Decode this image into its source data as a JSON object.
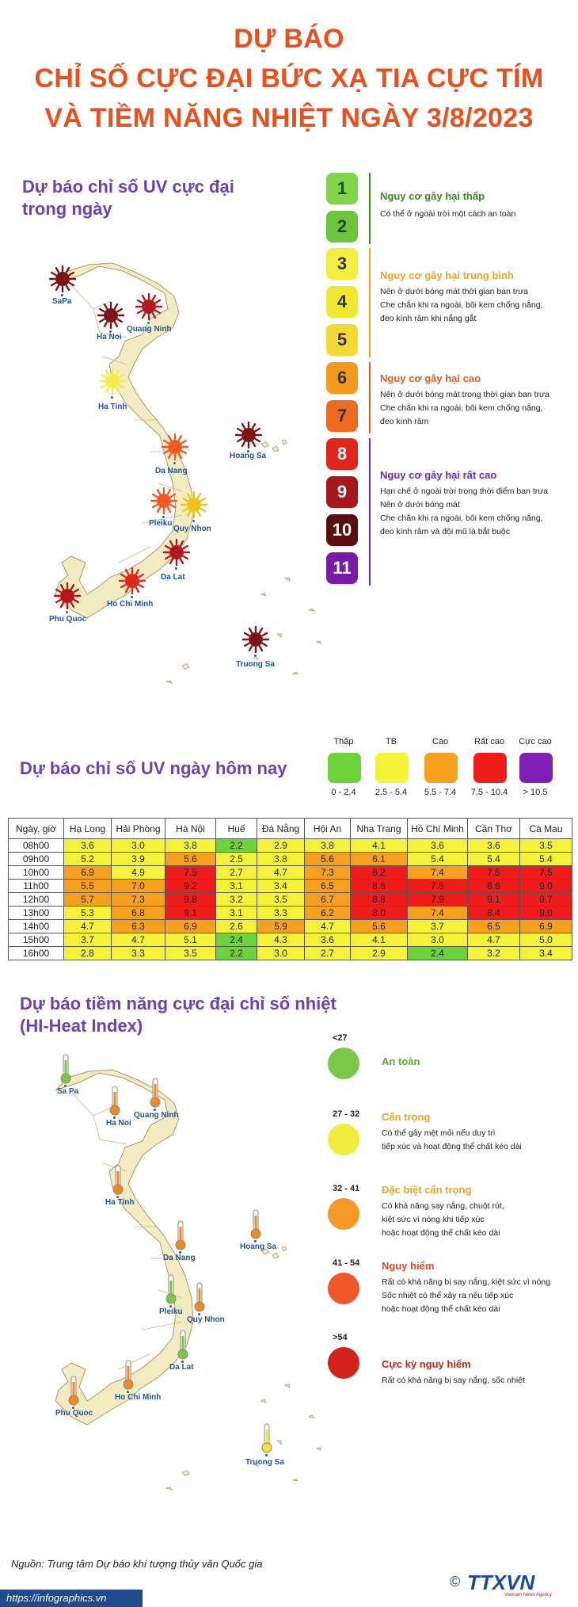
{
  "title": {
    "line1": "DỰ BÁO",
    "line2": "CHỈ SỐ CỰC ĐẠI BỨC XẠ TIA CỰC TÍM",
    "line3": "VÀ TIỀM NĂNG NHIỆT NGÀY 3/8/2023"
  },
  "uv_max": {
    "heading_line1": "Dự báo chỉ số UV cực đại",
    "heading_line2": "trong ngày",
    "cities": [
      {
        "name": "SaPa",
        "color": "#7b1414"
      },
      {
        "name": "Ha Noi",
        "color": "#7b1414"
      },
      {
        "name": "Quang Ninh",
        "color": "#b3161b"
      },
      {
        "name": "Ha Tinh",
        "color": "#f5ec4c"
      },
      {
        "name": "Hoang Sa",
        "color": "#7b1414"
      },
      {
        "name": "Da Nang",
        "color": "#f05a22"
      },
      {
        "name": "Pleiku",
        "color": "#f05a22"
      },
      {
        "name": "Quy Nhon",
        "color": "#f2c21c"
      },
      {
        "name": "Da Lat",
        "color": "#b3161b"
      },
      {
        "name": "Ho Chi Minh",
        "color": "#e0251d"
      },
      {
        "name": "Phu Quoc",
        "color": "#b3161b"
      },
      {
        "name": "Truong Sa",
        "color": "#7b1414"
      }
    ],
    "scale": [
      {
        "value": "1",
        "color": "#82d44a",
        "text": "#1b4d1b"
      },
      {
        "value": "2",
        "color": "#6cc53a",
        "text": "#1b4d1b"
      },
      {
        "value": "3",
        "color": "#f4ee43",
        "text": "#333"
      },
      {
        "value": "4",
        "color": "#f1e630",
        "text": "#333"
      },
      {
        "value": "5",
        "color": "#f2d933",
        "text": "#333"
      },
      {
        "value": "6",
        "color": "#f39a1c",
        "text": "#333"
      },
      {
        "value": "7",
        "color": "#ee6a1e",
        "text": "#333"
      },
      {
        "value": "8",
        "color": "#e0251d",
        "text": "#ffffff"
      },
      {
        "value": "9",
        "color": "#a7161b",
        "text": "#ffffff"
      },
      {
        "value": "10",
        "color": "#5a0e0e",
        "text": "#ffffff"
      },
      {
        "value": "11",
        "color": "#7a1aa8",
        "text": "#ffffff"
      }
    ],
    "groups": [
      {
        "title": "Nguy cơ gây hại thấp",
        "color": "#3b8a1e",
        "desc": [
          "Có thể ở ngoài trời một cách an toàn"
        ]
      },
      {
        "title": "Nguy cơ gây hại trung bình",
        "color": "#f0a31b",
        "desc": [
          "Nên ở dưới bóng mát thời gian ban trưa",
          "Che chắn khi ra ngoài, bôi kem chống nắng,",
          "đeo kính râm khi nắng gắt"
        ]
      },
      {
        "title": "Nguy cơ gây hại cao",
        "color": "#ea5a1a",
        "desc": [
          "Nên ở dưới bóng mát trong thời gian ban trưa",
          "Che chắn khi ra ngoài, bôi kem chống nắng,",
          "đeo kính râm"
        ]
      },
      {
        "title": "Nguy cơ gây hại rất cao",
        "color": "#6a2bb0",
        "desc": [
          "Hạn chế ở ngoài trời trong thời điểm ban trưa",
          "Nên ở dưới bóng mát",
          "Che chắn khi ra ngoài, bôi kem chống nắng,",
          "đeo kính râm và đội mũ là bắt buộc"
        ]
      }
    ]
  },
  "uv_today": {
    "heading": "Dự báo chỉ số UV ngày hôm nay",
    "legend": [
      {
        "label": "Thấp",
        "range": "0 - 2.4",
        "color": "#6dd33a"
      },
      {
        "label": "TB",
        "range": "2.5 - 5.4",
        "color": "#f5f23a"
      },
      {
        "label": "Cao",
        "range": "5.5 - 7.4",
        "color": "#f5a11f"
      },
      {
        "label": "Rất cao",
        "range": "7.5 - 10.4",
        "color": "#ef1c1c"
      },
      {
        "label": "Cực cao",
        "range": "> 10.5",
        "color": "#7f1fb3"
      }
    ],
    "table": {
      "headers": [
        "Ngày, giờ",
        "Hạ Long",
        "Hải Phòng",
        "Hà Nội",
        "Huế",
        "Đà Nẵng",
        "Hội An",
        "Nha Trang",
        "Hồ Chí Minh",
        "Cần Thơ",
        "Cà Mau"
      ],
      "rows": [
        [
          "08h00",
          "3.6",
          "3.0",
          "3.8",
          "2.2",
          "2.9",
          "3.8",
          "4.1",
          "3.6",
          "3.6",
          "3.5"
        ],
        [
          "09h00",
          "5.2",
          "3.9",
          "5.6",
          "2.5",
          "3.8",
          "5.6",
          "6.1",
          "5.4",
          "5.4",
          "5.4"
        ],
        [
          "10h00",
          "6.9",
          "4.9",
          "7.5",
          "2.7",
          "4.7",
          "7.3",
          "8.2",
          "7.4",
          "7.5",
          "7.5"
        ],
        [
          "11h00",
          "5.5",
          "7.0",
          "9.2",
          "3.1",
          "3.4",
          "6.5",
          "8.6",
          "7.5",
          "8.6",
          "9.0"
        ],
        [
          "12h00",
          "5.7",
          "7.3",
          "9.8",
          "3.2",
          "3.5",
          "6.7",
          "8.8",
          "7.9",
          "9.1",
          "9.7"
        ],
        [
          "13h00",
          "5.3",
          "6.8",
          "9.1",
          "3.1",
          "3.3",
          "6.2",
          "8.0",
          "7.4",
          "8.4",
          "9.0"
        ],
        [
          "14h00",
          "4.7",
          "6.3",
          "6.9",
          "2.6",
          "5.9",
          "4.7",
          "5.6",
          "3.7",
          "6.5",
          "6.9"
        ],
        [
          "15h00",
          "3.7",
          "4.7",
          "5.1",
          "2.4",
          "4.3",
          "3.6",
          "4.1",
          "3.0",
          "4.7",
          "5.0"
        ],
        [
          "16h00",
          "2.8",
          "3.3",
          "3.5",
          "2.2",
          "3.0",
          "2.7",
          "2.9",
          "2.4",
          "3.2",
          "3.4"
        ]
      ]
    }
  },
  "heat": {
    "heading_line1": "Dự báo tiềm năng cực đại chỉ số nhiệt",
    "heading_line2": "(HI-Heat Index)",
    "cities": [
      {
        "name": "Sa Pa",
        "color": "#79c743"
      },
      {
        "name": "Ha Noi",
        "color": "#f08a1f"
      },
      {
        "name": "Quang Ninh",
        "color": "#f08a1f"
      },
      {
        "name": "Ha Tinh",
        "color": "#f08a1f"
      },
      {
        "name": "Hoang Sa",
        "color": "#f08a1f"
      },
      {
        "name": "Da Nang",
        "color": "#f08a1f"
      },
      {
        "name": "Pleiku",
        "color": "#79c743"
      },
      {
        "name": "Quy Nhon",
        "color": "#f08a1f"
      },
      {
        "name": "Da Lat",
        "color": "#79c743"
      },
      {
        "name": "Ho Chi Minh",
        "color": "#f08a1f"
      },
      {
        "name": "Phu Quoc",
        "color": "#f08a1f"
      },
      {
        "name": "Truong Sa",
        "color": "#f2e236"
      }
    ],
    "levels": [
      {
        "range": "<27",
        "title": "An toàn",
        "color": "#7cc84a",
        "title_color": "#5aa830",
        "desc": []
      },
      {
        "range": "27 - 32",
        "title": "Cẩn trọng",
        "color": "#f2ec3e",
        "title_color": "#f0a31b",
        "desc": [
          "Có thể gây mệt mỏi nếu duy trì",
          "tiếp xúc và hoạt động thể chất kéo dài"
        ]
      },
      {
        "range": "32 - 41",
        "title": "Đặc biệt cẩn trọng",
        "color": "#f59a2a",
        "title_color": "#f0a31b",
        "desc": [
          "Có khả năng say nắng, chuột rút,",
          "kiệt sức vì nóng khi tiếp xúc",
          "hoặc hoạt động thể chất kéo dài"
        ]
      },
      {
        "range": "41 - 54",
        "title": "Nguy hiểm",
        "color": "#f0572a",
        "title_color": "#ea4a1a",
        "desc": [
          "Rất có khả năng bị say nắng, kiệt sức vì nóng",
          "Sốc nhiệt có thể xảy ra nếu tiếp xúc",
          "hoặc hoạt động thể chất kéo dài"
        ]
      },
      {
        "range": ">54",
        "title": "Cực kỳ nguy hiểm",
        "color": "#d1221c",
        "title_color": "#d1221c",
        "desc": [
          "Rất có khả năng bị say nắng, sốc nhiệt"
        ]
      }
    ]
  },
  "footer": {
    "source": "Nguồn: Trung tâm Dự báo khí tượng thủy văn Quốc gia",
    "url": "https://infographics.vn",
    "logo": "TTXVN",
    "logo_sub": "Vietnam News Agency",
    "copyright": "©"
  }
}
